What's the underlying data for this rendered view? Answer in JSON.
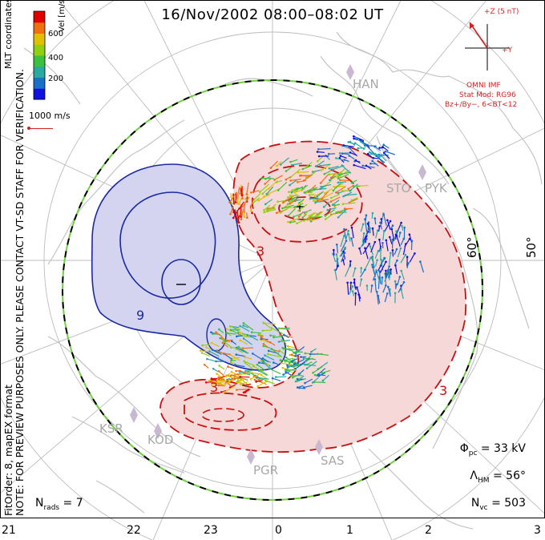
{
  "title": "16/Nov/2002 08:00–08:02 UT",
  "colorbar": {
    "label": "Vel [m/s]",
    "ticks": [
      "600",
      "400",
      "200"
    ],
    "colors": [
      "#1010e0",
      "#1a6fc8",
      "#2aa9a0",
      "#3cc040",
      "#90d010",
      "#e0c000",
      "#f07010",
      "#e00000"
    ]
  },
  "side_label": "MLT coordinates",
  "vector_scale": "1000 m/s",
  "notes": {
    "preview": "NOTE: FOR PREVIEW PURPOSES ONLY. PLEASE CONTACT VT-SD STAFF FOR VERIFICATION.",
    "fit": "FitOrder: 8, mapEX format"
  },
  "imf": {
    "z_label": "+Z (5 nT)",
    "y_label": "+Y",
    "omni": "OMNI IMF",
    "model": "Stat Mod: RG96",
    "condition": "Bz+/By−, 6<BT<12"
  },
  "stations": [
    "HAN",
    "STO",
    "PYK",
    "KSR",
    "KOD",
    "PGR",
    "SAS"
  ],
  "latitudes": [
    "60°",
    "50°"
  ],
  "contour_labels": [
    "3",
    "3",
    "9",
    "3"
  ],
  "stats": {
    "phi_pc": "Φ",
    "phi_pc_sub": "pc",
    "phi_pc_value": " = 33 kV",
    "lambda_hm": "Λ",
    "lambda_hm_sub": "HM",
    "lambda_hm_value": " = 56°",
    "n_vc": "N",
    "n_vc_sub": "vc",
    "n_vc_value": " = 503",
    "n_rads": "N",
    "n_rads_sub": "rads",
    "n_rads_value": " = 7"
  },
  "mlt_ticks": [
    "21",
    "22",
    "23",
    "0",
    "1",
    "2",
    "3"
  ],
  "colors": {
    "negative_fill": "#d4d4f0",
    "negative_contour": "#1a2aa0",
    "positive_fill": "#f6d8d8",
    "positive_contour": "#c81010",
    "grid": "#bcbcbc",
    "coast": "#c4c4c4",
    "hmb_line": "#70d040"
  }
}
